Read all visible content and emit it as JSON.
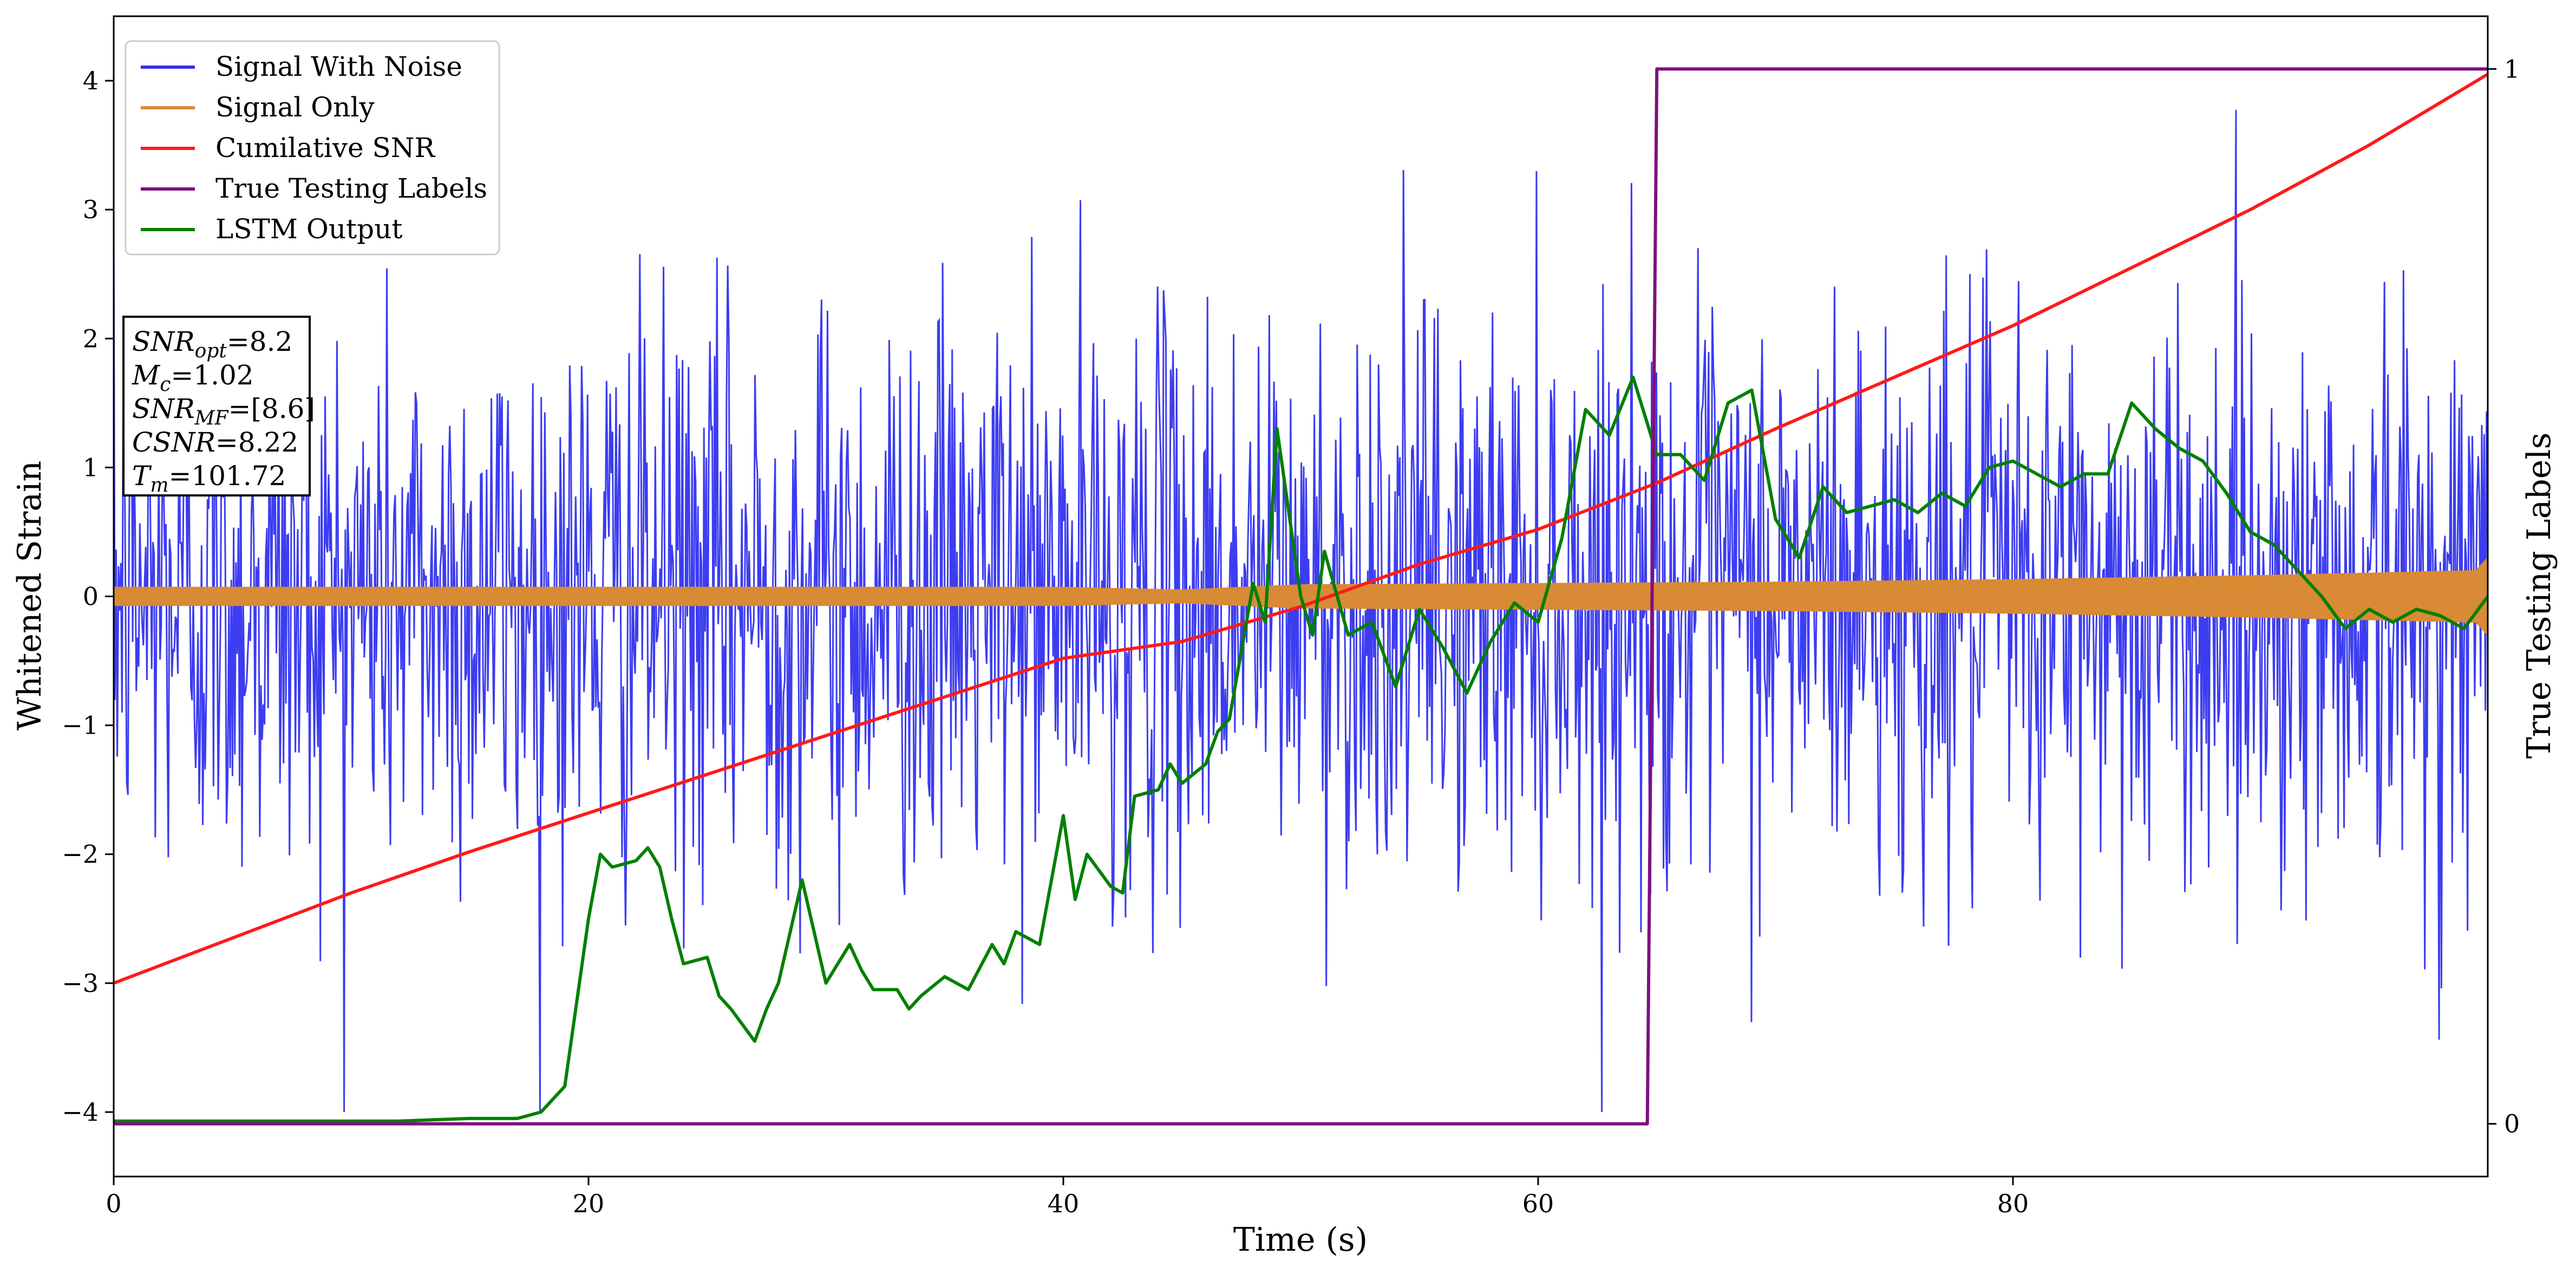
{
  "chart_data": {
    "type": "line",
    "xlabel": "Time (s)",
    "ylabel": "Whitened Strain",
    "y2label": "True Testing Labels",
    "xlim": [
      0,
      100
    ],
    "ylim": [
      -4.5,
      4.5
    ],
    "y2lim": [
      -0.05,
      1.05
    ],
    "xticks": [
      0,
      20,
      40,
      60,
      80
    ],
    "yticks": [
      -4,
      -3,
      -2,
      -1,
      0,
      1,
      2,
      3,
      4
    ],
    "y2ticks": [
      0,
      1
    ],
    "legend_position": "upper-left",
    "grid": false,
    "series": [
      {
        "name": "Signal With Noise",
        "color": "#3232f0",
        "kind": "noise",
        "sample_count": 2000,
        "approx_range": [
          -4.0,
          4.1
        ],
        "typical_std": 1.0
      },
      {
        "name": "Signal Only",
        "color": "#d88a35",
        "kind": "envelope",
        "x": [
          0,
          10,
          20,
          30,
          40,
          45,
          50,
          60,
          70,
          80,
          90,
          95,
          99.5,
          100
        ],
        "amplitude": [
          0.07,
          0.07,
          0.07,
          0.07,
          0.07,
          0.05,
          0.09,
          0.1,
          0.11,
          0.13,
          0.16,
          0.18,
          0.2,
          0.3
        ]
      },
      {
        "name": "Cumilative SNR",
        "color": "#ff1a1a",
        "axis": "y",
        "x": [
          0,
          5,
          10,
          15,
          20,
          25,
          30,
          35,
          40,
          45,
          50,
          55,
          60,
          65,
          70,
          75,
          80,
          85,
          90,
          95,
          100
        ],
        "values": [
          -3.0,
          -2.65,
          -2.3,
          -1.98,
          -1.68,
          -1.38,
          -1.08,
          -0.78,
          -0.48,
          -0.35,
          -0.08,
          0.25,
          0.52,
          0.88,
          1.3,
          1.7,
          2.1,
          2.55,
          3.0,
          3.5,
          4.05
        ]
      },
      {
        "name": "True Testing Labels",
        "color": "#7f0f7f",
        "axis": "y2",
        "x": [
          0,
          64.5,
          64.6,
          65.0,
          100
        ],
        "values": [
          0,
          0,
          0,
          1,
          1
        ]
      },
      {
        "name": "LSTM Output",
        "color": "#008000",
        "axis": "y",
        "x": [
          0,
          12,
          15,
          17,
          18,
          19,
          20,
          20.5,
          21,
          22,
          22.5,
          23,
          23.5,
          24,
          25,
          25.5,
          26,
          27,
          27.5,
          28,
          29,
          30,
          31,
          31.5,
          32,
          33,
          33.5,
          34,
          35,
          36,
          37,
          37.5,
          38,
          39,
          40,
          40.5,
          41,
          42,
          42.5,
          43,
          44,
          44.5,
          45,
          46,
          46.5,
          47,
          48,
          48.5,
          49,
          50,
          50.5,
          51,
          52,
          53,
          54,
          55,
          56,
          57,
          58,
          59,
          60,
          61,
          62,
          63,
          64,
          65,
          66,
          67,
          68,
          69,
          70,
          71,
          72,
          73,
          74,
          75,
          76,
          77,
          78,
          79,
          80,
          81,
          82,
          83,
          84,
          85,
          86,
          87,
          88,
          89,
          90,
          91,
          92,
          93,
          94,
          95,
          96,
          97,
          98,
          99,
          100
        ],
        "values": [
          -4.07,
          -4.07,
          -4.05,
          -4.05,
          -4.0,
          -3.8,
          -2.5,
          -2.0,
          -2.1,
          -2.05,
          -1.95,
          -2.1,
          -2.5,
          -2.85,
          -2.8,
          -3.1,
          -3.2,
          -3.45,
          -3.2,
          -3.0,
          -2.2,
          -3.0,
          -2.7,
          -2.9,
          -3.05,
          -3.05,
          -3.2,
          -3.1,
          -2.95,
          -3.05,
          -2.7,
          -2.85,
          -2.6,
          -2.7,
          -1.7,
          -2.35,
          -2.0,
          -2.25,
          -2.3,
          -1.55,
          -1.5,
          -1.3,
          -1.45,
          -1.3,
          -1.05,
          -0.95,
          0.1,
          -0.2,
          1.3,
          0.0,
          -0.3,
          0.35,
          -0.3,
          -0.2,
          -0.7,
          -0.1,
          -0.4,
          -0.75,
          -0.35,
          -0.05,
          -0.2,
          0.45,
          1.45,
          1.25,
          1.7,
          1.1,
          1.1,
          0.9,
          1.5,
          1.6,
          0.6,
          0.3,
          0.85,
          0.65,
          0.7,
          0.75,
          0.65,
          0.8,
          0.7,
          1.0,
          1.05,
          0.95,
          0.85,
          0.95,
          0.95,
          1.5,
          1.3,
          1.15,
          1.05,
          0.8,
          0.5,
          0.4,
          0.2,
          0.0,
          -0.25,
          -0.1,
          -0.2,
          -0.1,
          -0.15,
          -0.25,
          0.0
        ]
      }
    ],
    "annotation": {
      "lines": [
        {
          "label": "SNR",
          "sub": "opt",
          "value": "8.2"
        },
        {
          "label": "M",
          "sub": "c",
          "value": "1.02"
        },
        {
          "label": "SNR",
          "sub": "MF",
          "value": "[8.6]"
        },
        {
          "label": "CSNR",
          "sub": "",
          "value": "8.22"
        },
        {
          "label": "T",
          "sub": "m",
          "value": "101.72"
        }
      ]
    }
  }
}
